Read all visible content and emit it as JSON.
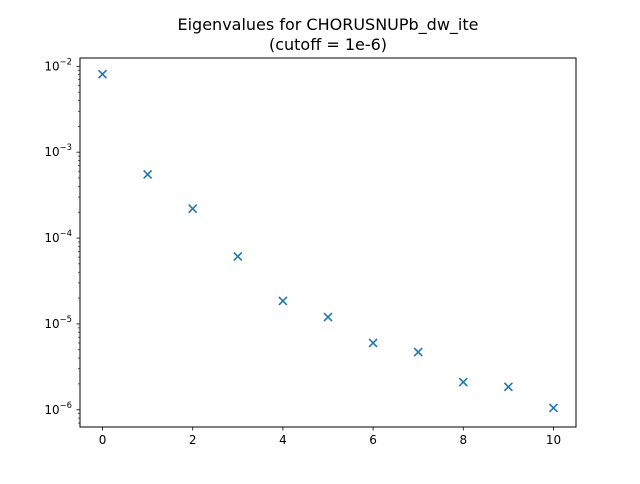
{
  "chart_data": {
    "type": "scatter",
    "title_line1": "Eigenvalues for CHORUSNUPb_dw_ite",
    "title_line2": "(cutoff = 1e-6)",
    "xlabel": "",
    "ylabel": "",
    "y_scale": "log",
    "xlim": [
      -0.5,
      10.5
    ],
    "ylim": [
      6.3e-07,
      0.0125
    ],
    "x_ticks": [
      0,
      2,
      4,
      6,
      8,
      10
    ],
    "y_ticks": [
      {
        "value": 0.01,
        "base": "10",
        "exp": "−2"
      },
      {
        "value": 0.001,
        "base": "10",
        "exp": "−3"
      },
      {
        "value": 0.0001,
        "base": "10",
        "exp": "−4"
      },
      {
        "value": 1e-05,
        "base": "10",
        "exp": "−5"
      },
      {
        "value": 1e-06,
        "base": "10",
        "exp": "−6"
      }
    ],
    "grid": false,
    "marker": "x",
    "series": [
      {
        "color": "#1f77b4",
        "x": [
          0,
          1,
          2,
          3,
          4,
          5,
          6,
          7,
          8,
          9,
          10
        ],
        "y": [
          0.0081,
          0.00055,
          0.00022,
          6.1e-05,
          1.85e-05,
          1.2e-05,
          6e-06,
          4.7e-06,
          2.1e-06,
          1.85e-06,
          1.05e-06
        ]
      }
    ]
  }
}
